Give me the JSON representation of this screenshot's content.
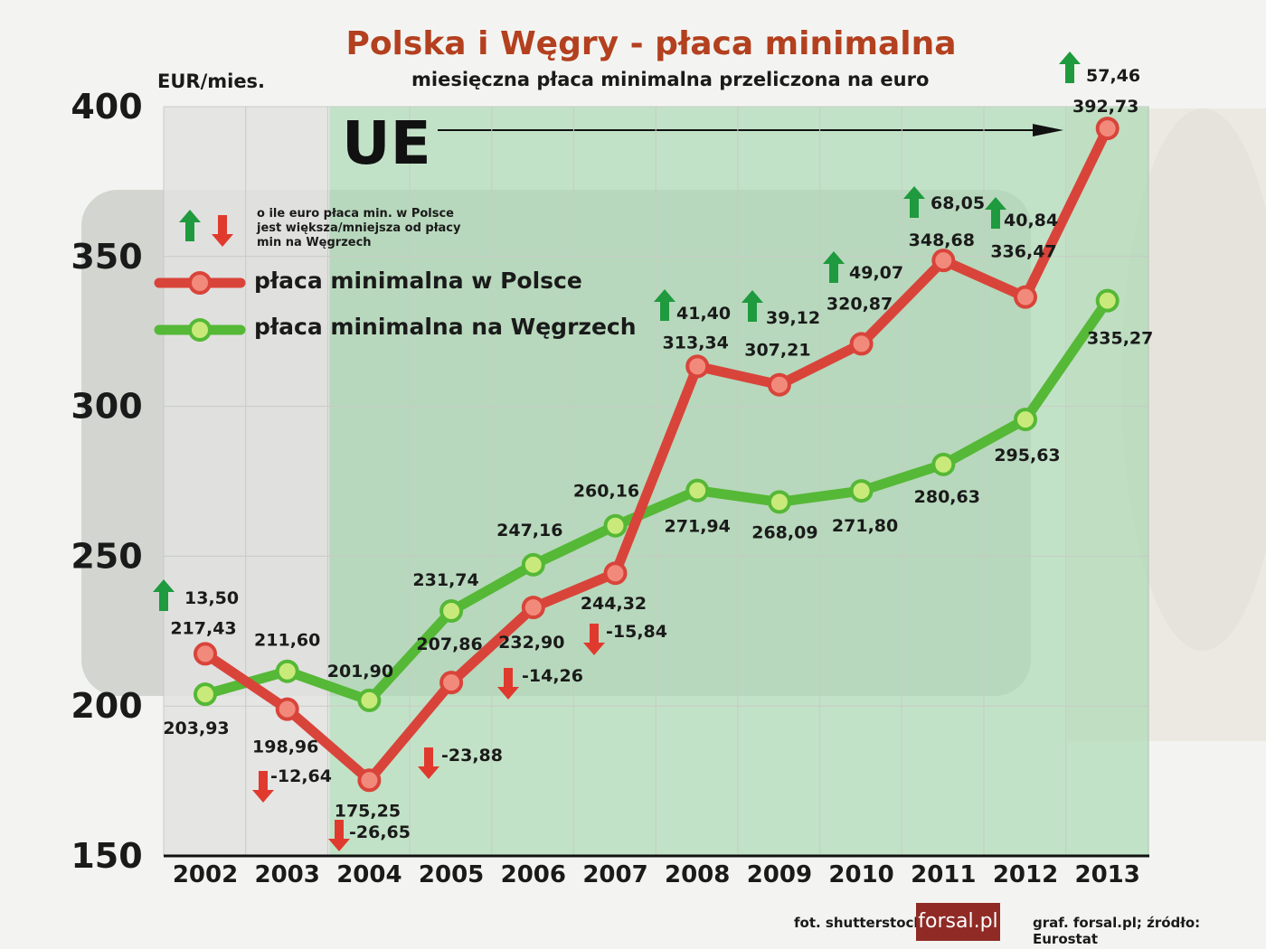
{
  "header": {
    "title": "Polska i Węgry - płaca minimalna",
    "subtitle": "miesięczna płaca minimalna przeliczona na euro",
    "unit": "EUR/mies."
  },
  "annotations": {
    "eu_marker": "UE",
    "legend_note": "o ile euro płaca min. w Polsce jest większa/mniejsza od płacy min na Węgrzech"
  },
  "legend": [
    {
      "label": "płaca minimalna w Polsce",
      "color": "#d9443a"
    },
    {
      "label": "płaca minimalna na Węgrzech",
      "color": "#55b836"
    }
  ],
  "footer": {
    "photo_credit": "fot. shutterstock",
    "logo": "forsal.pl",
    "source": "graf. forsal.pl;  źródło: Eurostat"
  },
  "colors": {
    "title": "#b3401f",
    "poland": "#d9443a",
    "hungary": "#55b836",
    "up_arrow": "#1f9a3e",
    "down_arrow": "#e03a2e",
    "eu_shade": "#a8d8b0"
  },
  "chart_data": {
    "type": "line",
    "title": "Polska i Węgry - płaca minimalna",
    "ylabel": "EUR/mies.",
    "ylim": [
      150,
      400
    ],
    "yticks": [
      "150",
      "200",
      "250",
      "300",
      "350",
      "400"
    ],
    "eu_from": "2004",
    "categories": [
      "2002",
      "2003",
      "2004",
      "2005",
      "2006",
      "2007",
      "2008",
      "2009",
      "2010",
      "2011",
      "2012",
      "2013"
    ],
    "series": [
      {
        "name": "płaca minimalna w Polsce",
        "values": [
          217.43,
          198.96,
          175.25,
          207.86,
          232.9,
          244.32,
          313.34,
          307.21,
          320.87,
          348.68,
          336.47,
          392.73
        ],
        "labels": [
          "217,43",
          "198,96",
          "175,25",
          "207,86",
          "232,90",
          "244,32",
          "313,34",
          "307,21",
          "320,87",
          "348,68",
          "336,47",
          "392,73"
        ]
      },
      {
        "name": "płaca minimalna na Węgrzech",
        "values": [
          203.93,
          211.6,
          201.9,
          231.74,
          247.16,
          260.16,
          271.94,
          268.09,
          271.8,
          280.63,
          295.63,
          335.27
        ],
        "labels": [
          "203,93",
          "211,60",
          "201,90",
          "231,74",
          "247,16",
          "260,16",
          "271,94",
          "268,09",
          "271,80",
          "280,63",
          "295,63",
          "335,27"
        ]
      }
    ],
    "differences": [
      {
        "year": "2002",
        "text": "13,50",
        "direction": "up"
      },
      {
        "year": "2003",
        "text": "-12,64",
        "direction": "down"
      },
      {
        "year": "2004",
        "text": "-26,65",
        "direction": "down"
      },
      {
        "year": "2005",
        "text": "-23,88",
        "direction": "down"
      },
      {
        "year": "2006",
        "text": "-14,26",
        "direction": "down"
      },
      {
        "year": "2007",
        "text": "-15,84",
        "direction": "down"
      },
      {
        "year": "2008",
        "text": "41,40",
        "direction": "up"
      },
      {
        "year": "2009",
        "text": "39,12",
        "direction": "up"
      },
      {
        "year": "2010",
        "text": "49,07",
        "direction": "up"
      },
      {
        "year": "2011",
        "text": "68,05",
        "direction": "up"
      },
      {
        "year": "2012",
        "text": "40,84",
        "direction": "up"
      },
      {
        "year": "2013",
        "text": "57,46",
        "direction": "up"
      }
    ]
  }
}
